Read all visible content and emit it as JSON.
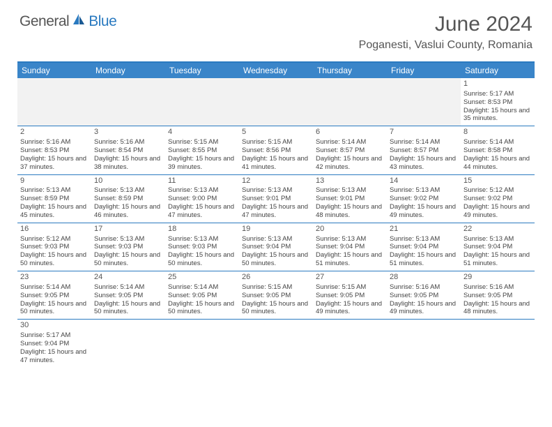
{
  "logo": {
    "general": "General",
    "blue": "Blue"
  },
  "title": "June 2024",
  "location": "Poganesti, Vaslui County, Romania",
  "colors": {
    "header_bg": "#3a85c9",
    "border": "#2a7ac0",
    "text": "#444444",
    "title_text": "#555555",
    "empty_bg": "#f2f2f2"
  },
  "weekdays": [
    "Sunday",
    "Monday",
    "Tuesday",
    "Wednesday",
    "Thursday",
    "Friday",
    "Saturday"
  ],
  "weeks": [
    [
      null,
      null,
      null,
      null,
      null,
      null,
      {
        "d": "1",
        "sr": "5:17 AM",
        "ss": "8:53 PM",
        "dl": "15 hours and 35 minutes."
      }
    ],
    [
      {
        "d": "2",
        "sr": "5:16 AM",
        "ss": "8:53 PM",
        "dl": "15 hours and 37 minutes."
      },
      {
        "d": "3",
        "sr": "5:16 AM",
        "ss": "8:54 PM",
        "dl": "15 hours and 38 minutes."
      },
      {
        "d": "4",
        "sr": "5:15 AM",
        "ss": "8:55 PM",
        "dl": "15 hours and 39 minutes."
      },
      {
        "d": "5",
        "sr": "5:15 AM",
        "ss": "8:56 PM",
        "dl": "15 hours and 41 minutes."
      },
      {
        "d": "6",
        "sr": "5:14 AM",
        "ss": "8:57 PM",
        "dl": "15 hours and 42 minutes."
      },
      {
        "d": "7",
        "sr": "5:14 AM",
        "ss": "8:57 PM",
        "dl": "15 hours and 43 minutes."
      },
      {
        "d": "8",
        "sr": "5:14 AM",
        "ss": "8:58 PM",
        "dl": "15 hours and 44 minutes."
      }
    ],
    [
      {
        "d": "9",
        "sr": "5:13 AM",
        "ss": "8:59 PM",
        "dl": "15 hours and 45 minutes."
      },
      {
        "d": "10",
        "sr": "5:13 AM",
        "ss": "8:59 PM",
        "dl": "15 hours and 46 minutes."
      },
      {
        "d": "11",
        "sr": "5:13 AM",
        "ss": "9:00 PM",
        "dl": "15 hours and 47 minutes."
      },
      {
        "d": "12",
        "sr": "5:13 AM",
        "ss": "9:01 PM",
        "dl": "15 hours and 47 minutes."
      },
      {
        "d": "13",
        "sr": "5:13 AM",
        "ss": "9:01 PM",
        "dl": "15 hours and 48 minutes."
      },
      {
        "d": "14",
        "sr": "5:13 AM",
        "ss": "9:02 PM",
        "dl": "15 hours and 49 minutes."
      },
      {
        "d": "15",
        "sr": "5:12 AM",
        "ss": "9:02 PM",
        "dl": "15 hours and 49 minutes."
      }
    ],
    [
      {
        "d": "16",
        "sr": "5:12 AM",
        "ss": "9:03 PM",
        "dl": "15 hours and 50 minutes."
      },
      {
        "d": "17",
        "sr": "5:13 AM",
        "ss": "9:03 PM",
        "dl": "15 hours and 50 minutes."
      },
      {
        "d": "18",
        "sr": "5:13 AM",
        "ss": "9:03 PM",
        "dl": "15 hours and 50 minutes."
      },
      {
        "d": "19",
        "sr": "5:13 AM",
        "ss": "9:04 PM",
        "dl": "15 hours and 50 minutes."
      },
      {
        "d": "20",
        "sr": "5:13 AM",
        "ss": "9:04 PM",
        "dl": "15 hours and 51 minutes."
      },
      {
        "d": "21",
        "sr": "5:13 AM",
        "ss": "9:04 PM",
        "dl": "15 hours and 51 minutes."
      },
      {
        "d": "22",
        "sr": "5:13 AM",
        "ss": "9:04 PM",
        "dl": "15 hours and 51 minutes."
      }
    ],
    [
      {
        "d": "23",
        "sr": "5:14 AM",
        "ss": "9:05 PM",
        "dl": "15 hours and 50 minutes."
      },
      {
        "d": "24",
        "sr": "5:14 AM",
        "ss": "9:05 PM",
        "dl": "15 hours and 50 minutes."
      },
      {
        "d": "25",
        "sr": "5:14 AM",
        "ss": "9:05 PM",
        "dl": "15 hours and 50 minutes."
      },
      {
        "d": "26",
        "sr": "5:15 AM",
        "ss": "9:05 PM",
        "dl": "15 hours and 50 minutes."
      },
      {
        "d": "27",
        "sr": "5:15 AM",
        "ss": "9:05 PM",
        "dl": "15 hours and 49 minutes."
      },
      {
        "d": "28",
        "sr": "5:16 AM",
        "ss": "9:05 PM",
        "dl": "15 hours and 49 minutes."
      },
      {
        "d": "29",
        "sr": "5:16 AM",
        "ss": "9:05 PM",
        "dl": "15 hours and 48 minutes."
      }
    ],
    [
      {
        "d": "30",
        "sr": "5:17 AM",
        "ss": "9:04 PM",
        "dl": "15 hours and 47 minutes."
      },
      null,
      null,
      null,
      null,
      null,
      null
    ]
  ],
  "labels": {
    "sunrise": "Sunrise: ",
    "sunset": "Sunset: ",
    "daylight": "Daylight: "
  }
}
